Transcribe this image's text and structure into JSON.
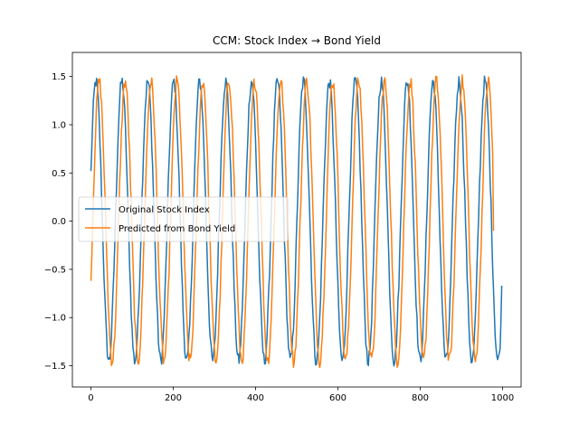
{
  "chart_data": {
    "type": "line",
    "title": "CCM: Stock Index → Bond Yield",
    "xlabel": "",
    "ylabel": "",
    "xlim": [
      -45,
      1045
    ],
    "ylim": [
      -1.72,
      1.75
    ],
    "xticks": [
      0,
      200,
      400,
      600,
      800,
      1000
    ],
    "yticks": [
      -1.5,
      -1.0,
      -0.5,
      0.0,
      0.5,
      1.0,
      1.5
    ],
    "xtick_labels": [
      "0",
      "200",
      "400",
      "600",
      "800",
      "1000"
    ],
    "ytick_labels": [
      "−1.5",
      "−1.0",
      "−0.5",
      "0.0",
      "0.5",
      "1.0",
      "1.5"
    ],
    "grid": false,
    "legend_position": "center-left",
    "series": [
      {
        "name": "Original Stock Index",
        "color": "#1f77b4",
        "period": 63,
        "phase_deg": 20,
        "amplitude": 1.45,
        "x_range": [
          0,
          999
        ],
        "start_value": 0.52,
        "end_value": -0.67,
        "max": 1.55,
        "min": -1.55
      },
      {
        "name": "Predicted from Bond Yield",
        "color": "#ff7f0e",
        "period": 63,
        "phase_deg": -25,
        "amplitude": 1.45,
        "x_range": [
          0,
          978
        ],
        "start_value": -0.62,
        "end_value": -0.1,
        "max": 1.58,
        "min": -1.53
      }
    ]
  }
}
